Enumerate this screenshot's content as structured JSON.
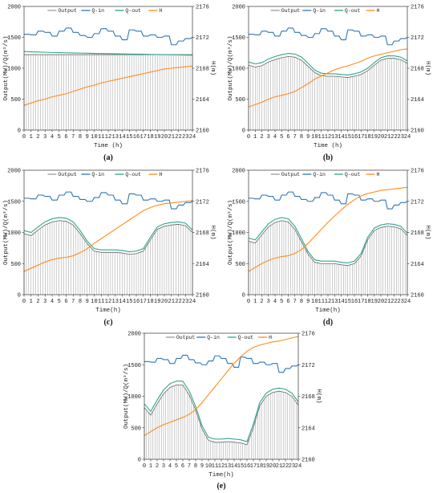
{
  "chart_data": [
    {
      "panel": "(a)",
      "type": "bar",
      "xlabel": "Time (h)",
      "ylabel": "Output(MW)/Q(m³/s)",
      "y2label": "H(m)",
      "xlim": [
        0,
        24
      ],
      "ylim": [
        0,
        2000
      ],
      "y2lim": [
        2160,
        2176
      ],
      "xticks": [
        "0",
        "1",
        "2",
        "3",
        "4",
        "5",
        "6",
        "7",
        "8",
        "9",
        "10",
        "11",
        "12",
        "13",
        "14",
        "15",
        "16",
        "17",
        "18",
        "19",
        "20",
        "21",
        "22",
        "23",
        "24"
      ],
      "yticks": [
        "0",
        "500",
        "1000",
        "1500",
        "2000"
      ],
      "y2ticks": [
        "2160",
        "2164",
        "2168",
        "2172",
        "2176"
      ],
      "legend": [
        "Output",
        "Q-in",
        "Q-out",
        "H"
      ],
      "legend_position": "top",
      "output": [
        1220,
        1220,
        1220,
        1220,
        1220,
        1220,
        1220,
        1220,
        1220,
        1220,
        1220,
        1220,
        1220,
        1220,
        1220,
        1220,
        1220,
        1220,
        1220,
        1220,
        1220,
        1220,
        1220,
        1220,
        1220
      ],
      "q_out": [
        1270,
        1265,
        1262,
        1258,
        1255,
        1252,
        1250,
        1248,
        1245,
        1243,
        1240,
        1238,
        1236,
        1234,
        1232,
        1230,
        1228,
        1226,
        1224,
        1222,
        1220,
        1218,
        1216,
        1214,
        1212
      ],
      "h": [
        2163.2,
        2163.5,
        2163.8,
        2164.0,
        2164.3,
        2164.5,
        2164.7,
        2165.0,
        2165.3,
        2165.6,
        2165.8,
        2166.1,
        2166.3,
        2166.5,
        2166.7,
        2166.9,
        2167.1,
        2167.3,
        2167.5,
        2167.7,
        2167.9,
        2168.0,
        2168.1,
        2168.2,
        2168.3
      ]
    },
    {
      "panel": "(b)",
      "type": "bar",
      "xlabel": "Time (h)",
      "ylabel": "Output(MW)/Q(m³/s)",
      "y2label": "H(m)",
      "xlim": [
        0,
        24
      ],
      "ylim": [
        0,
        2000
      ],
      "y2lim": [
        2160,
        2176
      ],
      "xticks": [
        "0",
        "1",
        "2",
        "3",
        "4",
        "5",
        "6",
        "7",
        "8",
        "9",
        "10",
        "11",
        "12",
        "13",
        "14",
        "15",
        "16",
        "17",
        "18",
        "19",
        "20",
        "21",
        "22",
        "23",
        "24"
      ],
      "yticks": [
        "0",
        "500",
        "1000",
        "1500",
        "2000"
      ],
      "y2ticks": [
        "2160",
        "2164",
        "2168",
        "2172",
        "2176"
      ],
      "legend": [
        "Output",
        "Q-in",
        "Q-out",
        "H"
      ],
      "legend_position": "top",
      "output": [
        1050,
        1020,
        1040,
        1100,
        1140,
        1170,
        1190,
        1180,
        1130,
        1030,
        930,
        880,
        870,
        870,
        860,
        850,
        870,
        900,
        960,
        1050,
        1130,
        1160,
        1160,
        1140,
        1080
      ],
      "q_out": [
        1100,
        1070,
        1090,
        1150,
        1190,
        1220,
        1240,
        1230,
        1180,
        1080,
        970,
        920,
        910,
        910,
        900,
        890,
        910,
        940,
        1000,
        1090,
        1170,
        1200,
        1200,
        1180,
        1120
      ],
      "h": [
        2163.0,
        2163.3,
        2163.6,
        2164.0,
        2164.3,
        2164.5,
        2164.7,
        2165.0,
        2165.5,
        2166.0,
        2166.6,
        2167.0,
        2167.4,
        2167.8,
        2168.1,
        2168.3,
        2168.6,
        2168.9,
        2169.3,
        2169.6,
        2169.8,
        2170.0,
        2170.2,
        2170.4,
        2170.5
      ]
    },
    {
      "panel": "(c)",
      "type": "bar",
      "xlabel": "Time(h)",
      "ylabel": "Output(MW)/Q(m³/s)",
      "y2label": "H(m)",
      "xlim": [
        0,
        24
      ],
      "ylim": [
        0,
        2000
      ],
      "y2lim": [
        2160,
        2176
      ],
      "xticks": [
        "0",
        "1",
        "2",
        "3",
        "4",
        "5",
        "6",
        "7",
        "8",
        "9",
        "10",
        "11",
        "12",
        "13",
        "14",
        "15",
        "16",
        "17",
        "18",
        "19",
        "20",
        "21",
        "22",
        "23",
        "24"
      ],
      "yticks": [
        "0",
        "500",
        "1000",
        "1500",
        "2000"
      ],
      "y2ticks": [
        "2160",
        "2164",
        "2168",
        "2172",
        "2176"
      ],
      "legend": [
        "Output",
        "Q-in",
        "Q-out",
        "H"
      ],
      "legend_position": "top",
      "output": [
        980,
        950,
        1040,
        1120,
        1170,
        1190,
        1180,
        1120,
        980,
        820,
        700,
        680,
        680,
        680,
        670,
        650,
        660,
        700,
        880,
        1050,
        1100,
        1120,
        1130,
        1110,
        1000
      ],
      "q_out": [
        1030,
        1000,
        1090,
        1170,
        1220,
        1240,
        1230,
        1170,
        1030,
        860,
        740,
        720,
        720,
        720,
        710,
        690,
        700,
        740,
        920,
        1090,
        1140,
        1160,
        1170,
        1150,
        1040
      ],
      "h": [
        2163.0,
        2163.4,
        2163.8,
        2164.2,
        2164.5,
        2164.7,
        2164.8,
        2165.0,
        2165.4,
        2165.9,
        2166.6,
        2167.2,
        2167.8,
        2168.4,
        2169.0,
        2169.6,
        2170.2,
        2170.8,
        2171.2,
        2171.5,
        2171.7,
        2171.8,
        2171.9,
        2172.0,
        2172.1
      ]
    },
    {
      "panel": "(d)",
      "type": "bar",
      "xlabel": "Time(h)",
      "ylabel": "Output(MW)/Q(m³/s)",
      "y2label": "H(m)",
      "xlim": [
        0,
        24
      ],
      "ylim": [
        0,
        2000
      ],
      "y2lim": [
        2160,
        2176
      ],
      "xticks": [
        "0",
        "1",
        "2",
        "3",
        "4",
        "5",
        "6",
        "7",
        "8",
        "9",
        "10",
        "11",
        "12",
        "13",
        "14",
        "15",
        "16",
        "17",
        "18",
        "19",
        "20",
        "21",
        "22",
        "23",
        "24"
      ],
      "yticks": [
        "0",
        "500",
        "1000",
        "1500",
        "2000"
      ],
      "y2ticks": [
        "2160",
        "2164",
        "2168",
        "2172",
        "2176"
      ],
      "legend": [
        "Output",
        "Q-in",
        "Q-out",
        "H"
      ],
      "legend_position": "top",
      "output": [
        860,
        830,
        960,
        1090,
        1160,
        1190,
        1170,
        1050,
        850,
        650,
        520,
        500,
        500,
        500,
        480,
        470,
        500,
        620,
        880,
        1030,
        1080,
        1100,
        1090,
        1060,
        950
      ],
      "q_out": [
        910,
        880,
        1010,
        1140,
        1210,
        1240,
        1220,
        1100,
        900,
        690,
        560,
        540,
        540,
        540,
        520,
        510,
        540,
        660,
        920,
        1070,
        1120,
        1140,
        1130,
        1100,
        990
      ],
      "h": [
        2163.0,
        2163.5,
        2164.0,
        2164.4,
        2164.7,
        2164.9,
        2165.0,
        2165.3,
        2165.8,
        2166.6,
        2167.5,
        2168.4,
        2169.3,
        2170.1,
        2170.9,
        2171.6,
        2172.2,
        2172.7,
        2173.0,
        2173.2,
        2173.4,
        2173.5,
        2173.6,
        2173.7,
        2173.8
      ]
    },
    {
      "panel": "(e)",
      "type": "bar",
      "xlabel": "Time(h)",
      "ylabel": "Output(MW)/Q(m³/s)",
      "y2label": "H(m)",
      "xlim": [
        0,
        24
      ],
      "ylim": [
        0,
        2000
      ],
      "y2lim": [
        2160,
        2176
      ],
      "xticks": [
        "0",
        "1",
        "2",
        "3",
        "4",
        "5",
        "6",
        "7",
        "8",
        "9",
        "10",
        "11",
        "12",
        "13",
        "14",
        "15",
        "16",
        "17",
        "18",
        "19",
        "20",
        "21",
        "22",
        "23",
        "24"
      ],
      "yticks": [
        "0",
        "500",
        "1000",
        "1500",
        "2000"
      ],
      "y2ticks": [
        "2160",
        "2164",
        "2168",
        "2172",
        "2176"
      ],
      "legend": [
        "Output",
        "Q-in",
        "Q-out",
        "H"
      ],
      "legend_position": "top",
      "output": [
        820,
        700,
        880,
        1040,
        1140,
        1180,
        1180,
        1020,
        780,
        480,
        300,
        270,
        270,
        280,
        270,
        260,
        230,
        500,
        850,
        1000,
        1060,
        1080,
        1060,
        1000,
        860
      ],
      "q_out": [
        880,
        760,
        940,
        1100,
        1200,
        1240,
        1240,
        1080,
        840,
        530,
        350,
        320,
        320,
        330,
        320,
        310,
        280,
        560,
        900,
        1050,
        1110,
        1130,
        1110,
        1050,
        910
      ],
      "h": [
        2163.0,
        2163.5,
        2164.0,
        2164.4,
        2164.7,
        2165.0,
        2165.3,
        2165.7,
        2166.3,
        2167.2,
        2168.2,
        2169.2,
        2170.2,
        2171.2,
        2172.2,
        2173.0,
        2173.7,
        2174.2,
        2174.5,
        2174.7,
        2174.9,
        2175.0,
        2175.2,
        2175.4,
        2175.6
      ]
    }
  ],
  "q_in": [
    1550,
    1540,
    1600,
    1580,
    1520,
    1600,
    1650,
    1580,
    1530,
    1500,
    1560,
    1640,
    1600,
    1520,
    1460,
    1620,
    1600,
    1520,
    1540,
    1500,
    1520,
    1380,
    1440,
    1480,
    1500
  ],
  "colors": {
    "output": "#9a9a9a",
    "q_in": "#2e75b6",
    "q_out": "#2ca58d",
    "h": "#ff8c1a"
  }
}
